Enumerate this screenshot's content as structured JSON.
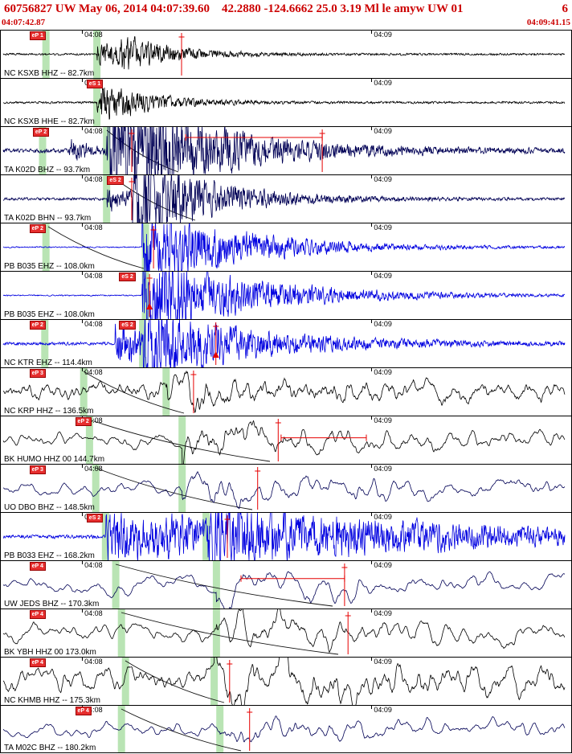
{
  "header": {
    "title": "60756827 UW May 06, 2014 04:07:39.60    42.2880 -124.6662 25.0 3.19 Ml le amyw UW 01",
    "count": "6",
    "start_time": "04:07:42.87",
    "end_time": "04:09:41.15",
    "accent": "#cc0000"
  },
  "time_ticks": [
    {
      "x": 0.142,
      "label": "04:08"
    },
    {
      "x": 0.648,
      "label": "04:09"
    }
  ],
  "colors": {
    "green_band": "#b9e4b4",
    "pick_red": "#e60000",
    "black": "#000000",
    "navy": "#000055",
    "blue": "#0000e0"
  },
  "traces": [
    {
      "label": "NC KSXB HHZ -- 82.7km",
      "color": "black",
      "seed": 101,
      "smooth": 0.2,
      "noise": 0.02,
      "bursts": [
        {
          "x": 0.168,
          "a": 0.3,
          "d": 14
        },
        {
          "x": 0.21,
          "a": 0.22,
          "d": 10
        }
      ],
      "green": [
        0.079,
        0.168
      ],
      "vlines": [
        0.316
      ],
      "tags": [
        {
          "x": 0.05,
          "t": "eP 1"
        }
      ]
    },
    {
      "label": "NC KSXB HHE -- 82.7km",
      "color": "black",
      "seed": 102,
      "smooth": 0.2,
      "noise": 0.02,
      "bursts": [
        {
          "x": 0.168,
          "a": 0.42,
          "d": 11
        }
      ],
      "green": [
        0.168
      ],
      "vlines": [],
      "tags": [
        {
          "x": 0.15,
          "t": "eS 1"
        }
      ]
    },
    {
      "label": "TA K02D BHZ -- 93.7km",
      "color": "navy",
      "seed": 103,
      "smooth": 0.2,
      "noise": 0.04,
      "bursts": [
        {
          "x": 0.12,
          "a": 0.22,
          "d": 25
        },
        {
          "x": 0.185,
          "a": 0.95,
          "d": 8
        },
        {
          "x": 0.229,
          "a": 0.45,
          "d": 5
        }
      ],
      "green": [
        0.073,
        0.185
      ],
      "vlines": [
        0.229,
        0.562
      ],
      "hline": {
        "x1": 0.323,
        "x2": 0.562,
        "y": 0.22
      },
      "tags": [
        {
          "x": 0.056,
          "t": "eP 2"
        }
      ],
      "curve": [
        0.185,
        0.31
      ]
    },
    {
      "label": "TA K02D BHN -- 93.7km",
      "color": "navy",
      "seed": 104,
      "smooth": 0.2,
      "noise": 0.025,
      "bursts": [
        {
          "x": 0.186,
          "a": 0.28,
          "d": 20
        },
        {
          "x": 0.229,
          "a": 0.95,
          "d": 8
        }
      ],
      "green": [
        0.185
      ],
      "vlines": [
        0.229
      ],
      "tags": [
        {
          "x": 0.186,
          "t": "eS 2"
        }
      ],
      "curve": [
        0.2,
        0.34
      ]
    },
    {
      "label": "PB B035 EHZ -- 108.0km",
      "color": "blue",
      "seed": 105,
      "smooth": 0.22,
      "noise": 0.012,
      "bursts": [
        {
          "x": 0.247,
          "a": 0.85,
          "d": 6
        }
      ],
      "green": [
        0.079,
        0.253
      ],
      "vlines": [
        0.267
      ],
      "tags": [
        {
          "x": 0.05,
          "t": "eP 2"
        }
      ],
      "curve": [
        0.083,
        0.25
      ]
    },
    {
      "label": "PB B035 EHZ -- 108.0km",
      "color": "blue",
      "seed": 106,
      "smooth": 0.22,
      "noise": 0.012,
      "bursts": [
        {
          "x": 0.247,
          "a": 0.9,
          "d": 5.5
        }
      ],
      "green": [
        0.253
      ],
      "vlines": [
        0.26
      ],
      "tags": [
        {
          "x": 0.207,
          "t": "eS 2"
        }
      ],
      "tri": 0.26
    },
    {
      "label": "NC KTR EHZ -- 114.4km",
      "color": "blue",
      "seed": 107,
      "smooth": 0.22,
      "noise": 0.03,
      "bursts": [
        {
          "x": 0.2,
          "a": 0.45,
          "d": 10
        },
        {
          "x": 0.248,
          "a": 0.6,
          "d": 5
        }
      ],
      "green": [
        0.077,
        0.248
      ],
      "vlines": [
        0.376
      ],
      "tags": [
        {
          "x": 0.05,
          "t": "eP 2"
        },
        {
          "x": 0.207,
          "t": "eS 2"
        }
      ],
      "tri": 0.376
    },
    {
      "label": "NC KRP HHZ -- 136.5km",
      "color": "black",
      "seed": 108,
      "smooth": 0.8,
      "noise": 0.5,
      "bursts": [
        {
          "x": 0.29,
          "a": 0.55,
          "d": 4
        }
      ],
      "green": [
        0.145,
        0.289
      ],
      "vlines": [
        0.337
      ],
      "tags": [
        {
          "x": 0.05,
          "t": "eP 3"
        }
      ],
      "curve": [
        0.145,
        0.32
      ]
    },
    {
      "label": "BK HUMO HHZ 00 144.7km",
      "color": "black",
      "seed": 109,
      "smooth": 0.85,
      "noise": 0.42,
      "bursts": [
        {
          "x": 0.317,
          "a": 1.1,
          "d": 3.5
        }
      ],
      "green": [
        0.155,
        0.317
      ],
      "vlines": [
        0.485
      ],
      "hline": {
        "x1": 0.49,
        "x2": 0.639,
        "y": 0.45
      },
      "tags": [
        {
          "x": 0.13,
          "t": "eP 2"
        }
      ],
      "curve": [
        0.155,
        0.47
      ]
    },
    {
      "label": "UO DBO BHZ -- 148.5km",
      "color": "navy",
      "seed": 110,
      "smooth": 0.87,
      "noise": 0.45,
      "bursts": [
        {
          "x": 0.317,
          "a": 0.9,
          "d": 3.5
        }
      ],
      "green": [
        0.166,
        0.317
      ],
      "vlines": [
        0.449
      ],
      "tags": [
        {
          "x": 0.05,
          "t": "eP 3"
        }
      ],
      "curve": [
        0.166,
        0.44
      ]
    },
    {
      "label": "PB B033 EHZ -- 168.2km",
      "color": "blue",
      "seed": 111,
      "smooth": 0.25,
      "noise": 0.035,
      "bursts": [
        {
          "x": 0.183,
          "a": 0.5,
          "d": 2
        },
        {
          "x": 0.359,
          "a": 0.35,
          "d": 3
        }
      ],
      "green": [
        0.183,
        0.359
      ],
      "vlines": [
        0.396
      ],
      "tags": [
        {
          "x": 0.15,
          "t": "eS 2"
        }
      ]
    },
    {
      "label": "UW JEDS BHZ -- 170.3km",
      "color": "navy",
      "seed": 112,
      "smooth": 0.9,
      "noise": 0.7,
      "bursts": [
        {
          "x": 0.377,
          "a": 1.0,
          "d": 3.5
        }
      ],
      "green": [
        0.201,
        0.377
      ],
      "vlines": [
        0.601
      ],
      "hline": {
        "x1": 0.42,
        "x2": 0.601,
        "y": 0.37
      },
      "tags": [
        {
          "x": 0.05,
          "t": "eP 4"
        }
      ],
      "curve": [
        0.201,
        0.58
      ]
    },
    {
      "label": "BK YBH HHZ 00 173.0km",
      "color": "black",
      "seed": 113,
      "smooth": 0.88,
      "noise": 0.7,
      "bursts": [
        {
          "x": 0.377,
          "a": 1.1,
          "d": 3.5
        }
      ],
      "green": [
        0.211,
        0.377
      ],
      "vlines": [
        0.607
      ],
      "tags": [
        {
          "x": 0.05,
          "t": "eP 4"
        }
      ],
      "curve": [
        0.211,
        0.59
      ]
    },
    {
      "label": "NC KHMB HHZ -- 175.3km",
      "color": "black",
      "seed": 114,
      "smooth": 0.86,
      "noise": 1.0,
      "bursts": [
        {
          "x": 0.373,
          "a": 1.1,
          "d": 2.5
        }
      ],
      "green": [
        0.218,
        0.373
      ],
      "vlines": [
        0.4
      ],
      "tags": [
        {
          "x": 0.05,
          "t": "eP 4"
        }
      ],
      "curve": [
        0.218,
        0.39
      ]
    },
    {
      "label": "TA M02C BHZ -- 180.2km",
      "color": "navy",
      "seed": 115,
      "smooth": 0.9,
      "noise": 0.7,
      "bursts": [
        {
          "x": 0.383,
          "a": 1.0,
          "d": 3
        }
      ],
      "green": [
        0.211,
        0.383
      ],
      "vlines": [
        0.435
      ],
      "tags": [
        {
          "x": 0.13,
          "t": "eP 4"
        }
      ],
      "curve": [
        0.211,
        0.42
      ]
    }
  ]
}
